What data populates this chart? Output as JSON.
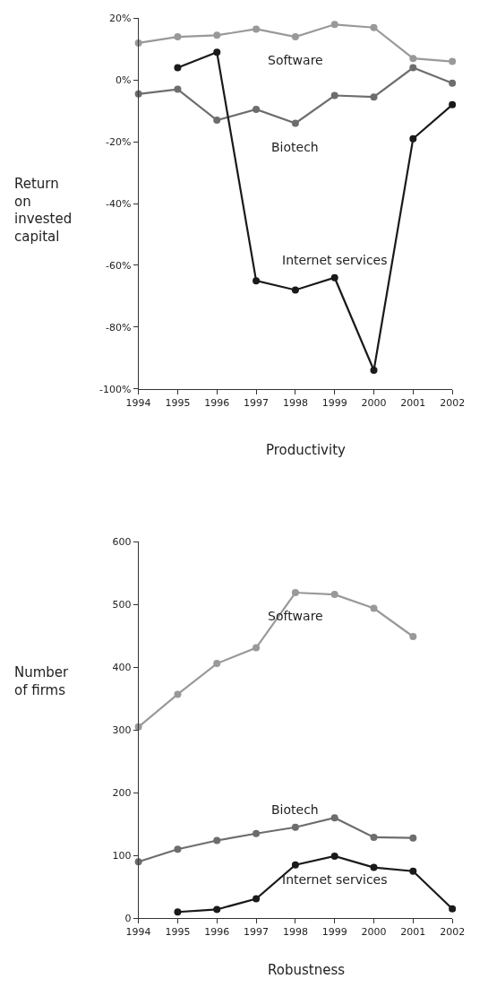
{
  "chart_data": [
    {
      "type": "line",
      "xlabel": "Productivity",
      "ylabel": "Return on invested capital",
      "x": [
        1994,
        1995,
        1996,
        1997,
        1998,
        1999,
        2000,
        2001,
        2002
      ],
      "xlim": [
        1994,
        2002
      ],
      "xticks": [
        1994,
        1995,
        1996,
        1997,
        1998,
        1999,
        2000,
        2001,
        2002
      ],
      "ylim": [
        -100,
        20
      ],
      "yticks": [
        {
          "value": -100,
          "label": "-100%"
        },
        {
          "value": -80,
          "label": "-80%"
        },
        {
          "value": -60,
          "label": "-60%"
        },
        {
          "value": -40,
          "label": "-40%"
        },
        {
          "value": -20,
          "label": "-20%"
        },
        {
          "value": 0,
          "label": "0%"
        },
        {
          "value": 20,
          "label": "20%"
        }
      ],
      "marker": "circle",
      "series": [
        {
          "name": "Software",
          "color": "#999999",
          "values": [
            12,
            14,
            14.5,
            16.5,
            14,
            18,
            17,
            7,
            6
          ]
        },
        {
          "name": "Biotech",
          "color": "#6d6d6d",
          "values": [
            -4.5,
            -3,
            -13,
            -9.5,
            -14,
            -5,
            -5.5,
            4,
            -1
          ]
        },
        {
          "name": "Internet services",
          "color": "#1a1a1a",
          "values": [
            null,
            4,
            9,
            -65,
            -68,
            -64,
            -94,
            -19,
            -8
          ]
        }
      ]
    },
    {
      "type": "line",
      "xlabel": "Robustness",
      "ylabel": "Number of firms",
      "x": [
        1994,
        1995,
        1996,
        1997,
        1998,
        1999,
        2000,
        2001,
        2002
      ],
      "xlim": [
        1994,
        2002
      ],
      "xticks": [
        1994,
        1995,
        1996,
        1997,
        1998,
        1999,
        2000,
        2001,
        2002
      ],
      "ylim": [
        0,
        600
      ],
      "yticks": [
        0,
        100,
        200,
        300,
        400,
        500,
        600
      ],
      "marker": "circle",
      "series": [
        {
          "name": "Software",
          "color": "#999999",
          "values": [
            305,
            357,
            406,
            431,
            519,
            516,
            494,
            449,
            null
          ]
        },
        {
          "name": "Biotech",
          "color": "#6d6d6d",
          "values": [
            90,
            110,
            124,
            135,
            145,
            160,
            129,
            128,
            null
          ]
        },
        {
          "name": "Internet services",
          "color": "#1a1a1a",
          "values": [
            null,
            10,
            14,
            31,
            85,
            99,
            81,
            75,
            15
          ]
        }
      ]
    }
  ]
}
